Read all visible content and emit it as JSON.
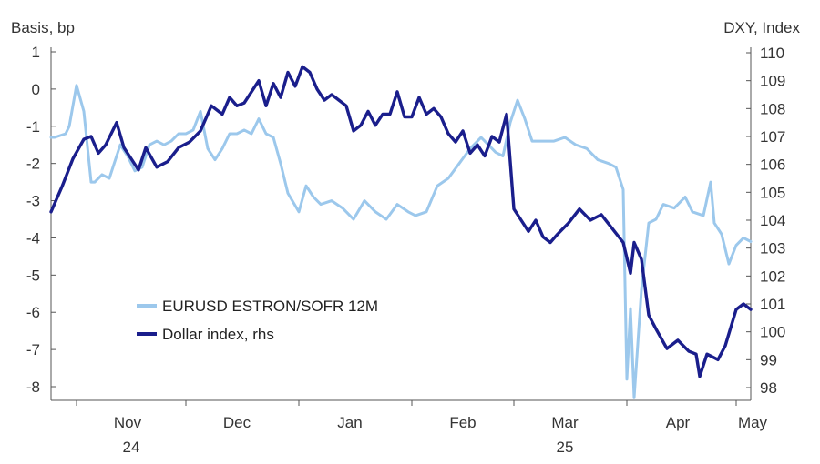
{
  "chart_data": {
    "type": "line",
    "left_axis_title": "Basis, bp",
    "right_axis_title": "DXY, Index",
    "left_ylim": [
      -8,
      1
    ],
    "right_ylim": [
      98,
      110
    ],
    "left_ticks": [
      "1",
      "0",
      "-1",
      "-2",
      "-3",
      "-4",
      "-5",
      "-6",
      "-7",
      "-8"
    ],
    "right_ticks": [
      "110",
      "109",
      "108",
      "107",
      "106",
      "105",
      "104",
      "103",
      "102",
      "101",
      "100",
      "99",
      "98"
    ],
    "x_month_labels": [
      "Nov",
      "Dec",
      "Jan",
      "Feb",
      "Mar",
      "Apr",
      "May"
    ],
    "x_year_labels": [
      "24",
      "25"
    ],
    "x_range": [
      "2024-10-25",
      "2025-05-05"
    ],
    "grid": false,
    "legend_position": "bottom-left",
    "series": [
      {
        "name": "EURUSD  ESTRON/SOFR 12M",
        "axis": "left",
        "color": "#9cc8ec",
        "x": [
          "2024-10-25",
          "2024-10-26",
          "2024-10-29",
          "2024-10-30",
          "2024-11-01",
          "2024-11-03",
          "2024-11-05",
          "2024-11-06",
          "2024-11-08",
          "2024-11-10",
          "2024-11-13",
          "2024-11-15",
          "2024-11-17",
          "2024-11-19",
          "2024-11-21",
          "2024-11-23",
          "2024-11-25",
          "2024-11-27",
          "2024-11-29",
          "2024-12-01",
          "2024-12-03",
          "2024-12-05",
          "2024-12-07",
          "2024-12-09",
          "2024-12-11",
          "2024-12-13",
          "2024-12-15",
          "2024-12-17",
          "2024-12-19",
          "2024-12-21",
          "2024-12-23",
          "2024-12-25",
          "2024-12-27",
          "2024-12-29",
          "2025-01-01",
          "2025-01-03",
          "2025-01-05",
          "2025-01-07",
          "2025-01-10",
          "2025-01-13",
          "2025-01-16",
          "2025-01-19",
          "2025-01-22",
          "2025-01-25",
          "2025-01-28",
          "2025-01-31",
          "2025-02-02",
          "2025-02-05",
          "2025-02-08",
          "2025-02-11",
          "2025-02-14",
          "2025-02-17",
          "2025-02-20",
          "2025-02-22",
          "2025-02-24",
          "2025-02-26",
          "2025-02-28",
          "2025-03-02",
          "2025-03-04",
          "2025-03-06",
          "2025-03-09",
          "2025-03-12",
          "2025-03-15",
          "2025-03-18",
          "2025-03-21",
          "2025-03-24",
          "2025-03-27",
          "2025-03-29",
          "2025-03-31",
          "2025-04-01",
          "2025-04-02",
          "2025-04-03",
          "2025-04-05",
          "2025-04-07",
          "2025-04-09",
          "2025-04-11",
          "2025-04-14",
          "2025-04-17",
          "2025-04-19",
          "2025-04-22",
          "2025-04-24",
          "2025-04-25",
          "2025-04-27",
          "2025-04-29",
          "2025-05-01",
          "2025-05-03",
          "2025-05-05"
        ],
        "values": [
          -1.3,
          -1.3,
          -1.2,
          -1.0,
          0.1,
          -0.6,
          -2.5,
          -2.5,
          -2.3,
          -2.4,
          -1.5,
          -1.8,
          -2.2,
          -2.1,
          -1.5,
          -1.4,
          -1.5,
          -1.4,
          -1.2,
          -1.2,
          -1.1,
          -0.6,
          -1.6,
          -1.9,
          -1.6,
          -1.2,
          -1.2,
          -1.1,
          -1.2,
          -0.8,
          -1.2,
          -1.3,
          -2.0,
          -2.8,
          -3.3,
          -2.6,
          -2.9,
          -3.1,
          -3.0,
          -3.2,
          -3.5,
          -3.0,
          -3.3,
          -3.5,
          -3.1,
          -3.3,
          -3.4,
          -3.3,
          -2.6,
          -2.4,
          -2.0,
          -1.6,
          -1.3,
          -1.5,
          -1.7,
          -1.8,
          -0.9,
          -0.3,
          -0.8,
          -1.4,
          -1.4,
          -1.4,
          -1.3,
          -1.5,
          -1.6,
          -1.9,
          -2.0,
          -2.1,
          -2.7,
          -7.8,
          -5.9,
          -8.3,
          -5.4,
          -3.6,
          -3.5,
          -3.1,
          -3.2,
          -2.9,
          -3.3,
          -3.4,
          -2.5,
          -3.6,
          -3.9,
          -4.7,
          -4.2,
          -4.0,
          -4.1
        ]
      },
      {
        "name": "Dollar index, rhs",
        "axis": "right",
        "color": "#1a1e8c",
        "x": [
          "2024-10-25",
          "2024-10-28",
          "2024-10-31",
          "2024-11-03",
          "2024-11-05",
          "2024-11-07",
          "2024-11-09",
          "2024-11-12",
          "2024-11-14",
          "2024-11-16",
          "2024-11-18",
          "2024-11-20",
          "2024-11-23",
          "2024-11-26",
          "2024-11-29",
          "2024-12-02",
          "2024-12-05",
          "2024-12-08",
          "2024-12-11",
          "2024-12-13",
          "2024-12-15",
          "2024-12-17",
          "2024-12-19",
          "2024-12-21",
          "2024-12-23",
          "2024-12-25",
          "2024-12-27",
          "2024-12-29",
          "2024-12-31",
          "2025-01-02",
          "2025-01-04",
          "2025-01-06",
          "2025-01-08",
          "2025-01-10",
          "2025-01-12",
          "2025-01-14",
          "2025-01-16",
          "2025-01-18",
          "2025-01-20",
          "2025-01-22",
          "2025-01-24",
          "2025-01-26",
          "2025-01-28",
          "2025-01-30",
          "2025-02-01",
          "2025-02-03",
          "2025-02-05",
          "2025-02-07",
          "2025-02-09",
          "2025-02-11",
          "2025-02-13",
          "2025-02-15",
          "2025-02-17",
          "2025-02-19",
          "2025-02-21",
          "2025-02-23",
          "2025-02-25",
          "2025-02-27",
          "2025-03-01",
          "2025-03-03",
          "2025-03-05",
          "2025-03-07",
          "2025-03-09",
          "2025-03-11",
          "2025-03-13",
          "2025-03-16",
          "2025-03-19",
          "2025-03-22",
          "2025-03-25",
          "2025-03-28",
          "2025-03-31",
          "2025-04-02",
          "2025-04-03",
          "2025-04-05",
          "2025-04-07",
          "2025-04-09",
          "2025-04-12",
          "2025-04-15",
          "2025-04-18",
          "2025-04-20",
          "2025-04-21",
          "2025-04-23",
          "2025-04-26",
          "2025-04-28",
          "2025-05-01",
          "2025-05-03",
          "2025-05-05"
        ],
        "values": [
          104.3,
          105.2,
          106.2,
          106.9,
          107.0,
          106.4,
          106.7,
          107.5,
          106.6,
          106.2,
          105.8,
          106.6,
          105.9,
          106.1,
          106.6,
          106.8,
          107.2,
          108.1,
          107.8,
          108.4,
          108.1,
          108.2,
          108.6,
          109.0,
          108.1,
          108.9,
          108.4,
          109.3,
          108.8,
          109.5,
          109.3,
          108.7,
          108.3,
          108.5,
          108.3,
          108.1,
          107.2,
          107.4,
          107.9,
          107.4,
          107.8,
          107.8,
          108.6,
          107.7,
          107.7,
          108.4,
          107.8,
          108.0,
          107.7,
          107.1,
          106.8,
          107.2,
          106.4,
          106.7,
          106.3,
          107.0,
          106.8,
          107.8,
          104.4,
          104.0,
          103.6,
          104.0,
          103.4,
          103.2,
          103.5,
          103.9,
          104.4,
          104.0,
          104.2,
          103.7,
          103.2,
          102.1,
          103.2,
          102.6,
          100.6,
          100.1,
          99.4,
          99.7,
          99.3,
          99.2,
          98.4,
          99.2,
          99.0,
          99.5,
          100.8,
          101.0,
          100.8
        ]
      }
    ]
  }
}
